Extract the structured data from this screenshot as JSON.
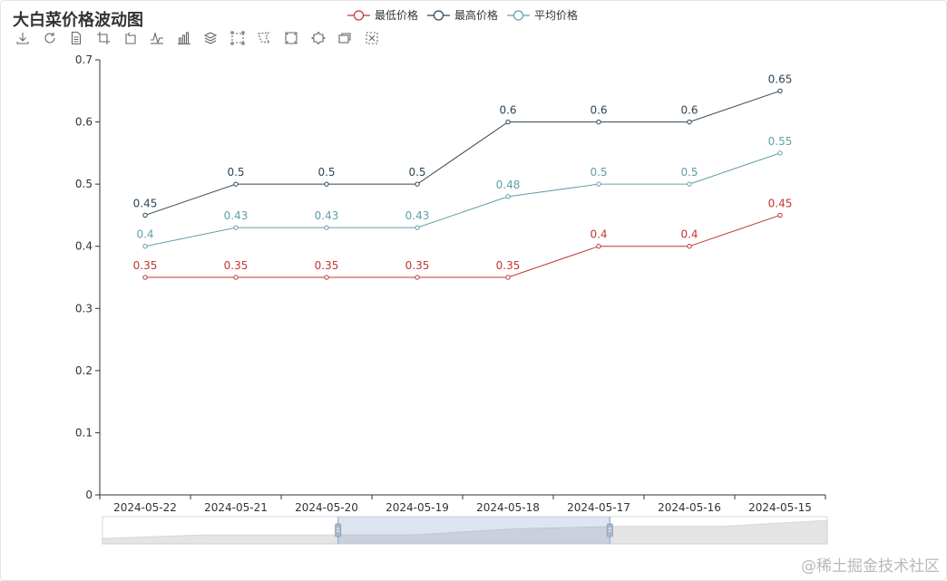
{
  "title": "大白菜价格波动图",
  "watermark": "@稀土掘金技术社区",
  "toolbox": [
    {
      "name": "download-icon"
    },
    {
      "name": "restore-icon"
    },
    {
      "name": "data-view-icon"
    },
    {
      "name": "crop-icon"
    },
    {
      "name": "crop-back-icon"
    },
    {
      "name": "line-chart-icon"
    },
    {
      "name": "bar-chart-icon"
    },
    {
      "name": "stack-icon"
    },
    {
      "name": "rect-select-icon"
    },
    {
      "name": "polygon-select-icon"
    },
    {
      "name": "keep-select-icon"
    },
    {
      "name": "clear-select-icon"
    },
    {
      "name": "expand-icon"
    },
    {
      "name": "close-select-icon"
    }
  ],
  "chart_data": {
    "type": "line",
    "title": "大白菜价格波动图",
    "categories": [
      "2024-05-22",
      "2024-05-21",
      "2024-05-20",
      "2024-05-19",
      "2024-05-18",
      "2024-05-17",
      "2024-05-16",
      "2024-05-15"
    ],
    "series": [
      {
        "name": "最低价格",
        "color": "#c23531",
        "values": [
          0.35,
          0.35,
          0.35,
          0.35,
          0.35,
          0.4,
          0.4,
          0.45
        ]
      },
      {
        "name": "最高价格",
        "color": "#2f4554",
        "values": [
          0.45,
          0.5,
          0.5,
          0.5,
          0.6,
          0.6,
          0.6,
          0.65
        ]
      },
      {
        "name": "平均价格",
        "color": "#61a0a8",
        "values": [
          0.4,
          0.43,
          0.43,
          0.43,
          0.48,
          0.5,
          0.5,
          0.55
        ]
      }
    ],
    "ylim": [
      0,
      0.7
    ],
    "yticks": [
      "0",
      "0.1",
      "0.2",
      "0.3",
      "0.4",
      "0.5",
      "0.6",
      "0.7"
    ],
    "xlabel": "",
    "ylabel": "",
    "grid": false,
    "legend_position": "top-center",
    "data_zoom": {
      "start_fraction": 0.325,
      "end_fraction": 0.7
    }
  }
}
